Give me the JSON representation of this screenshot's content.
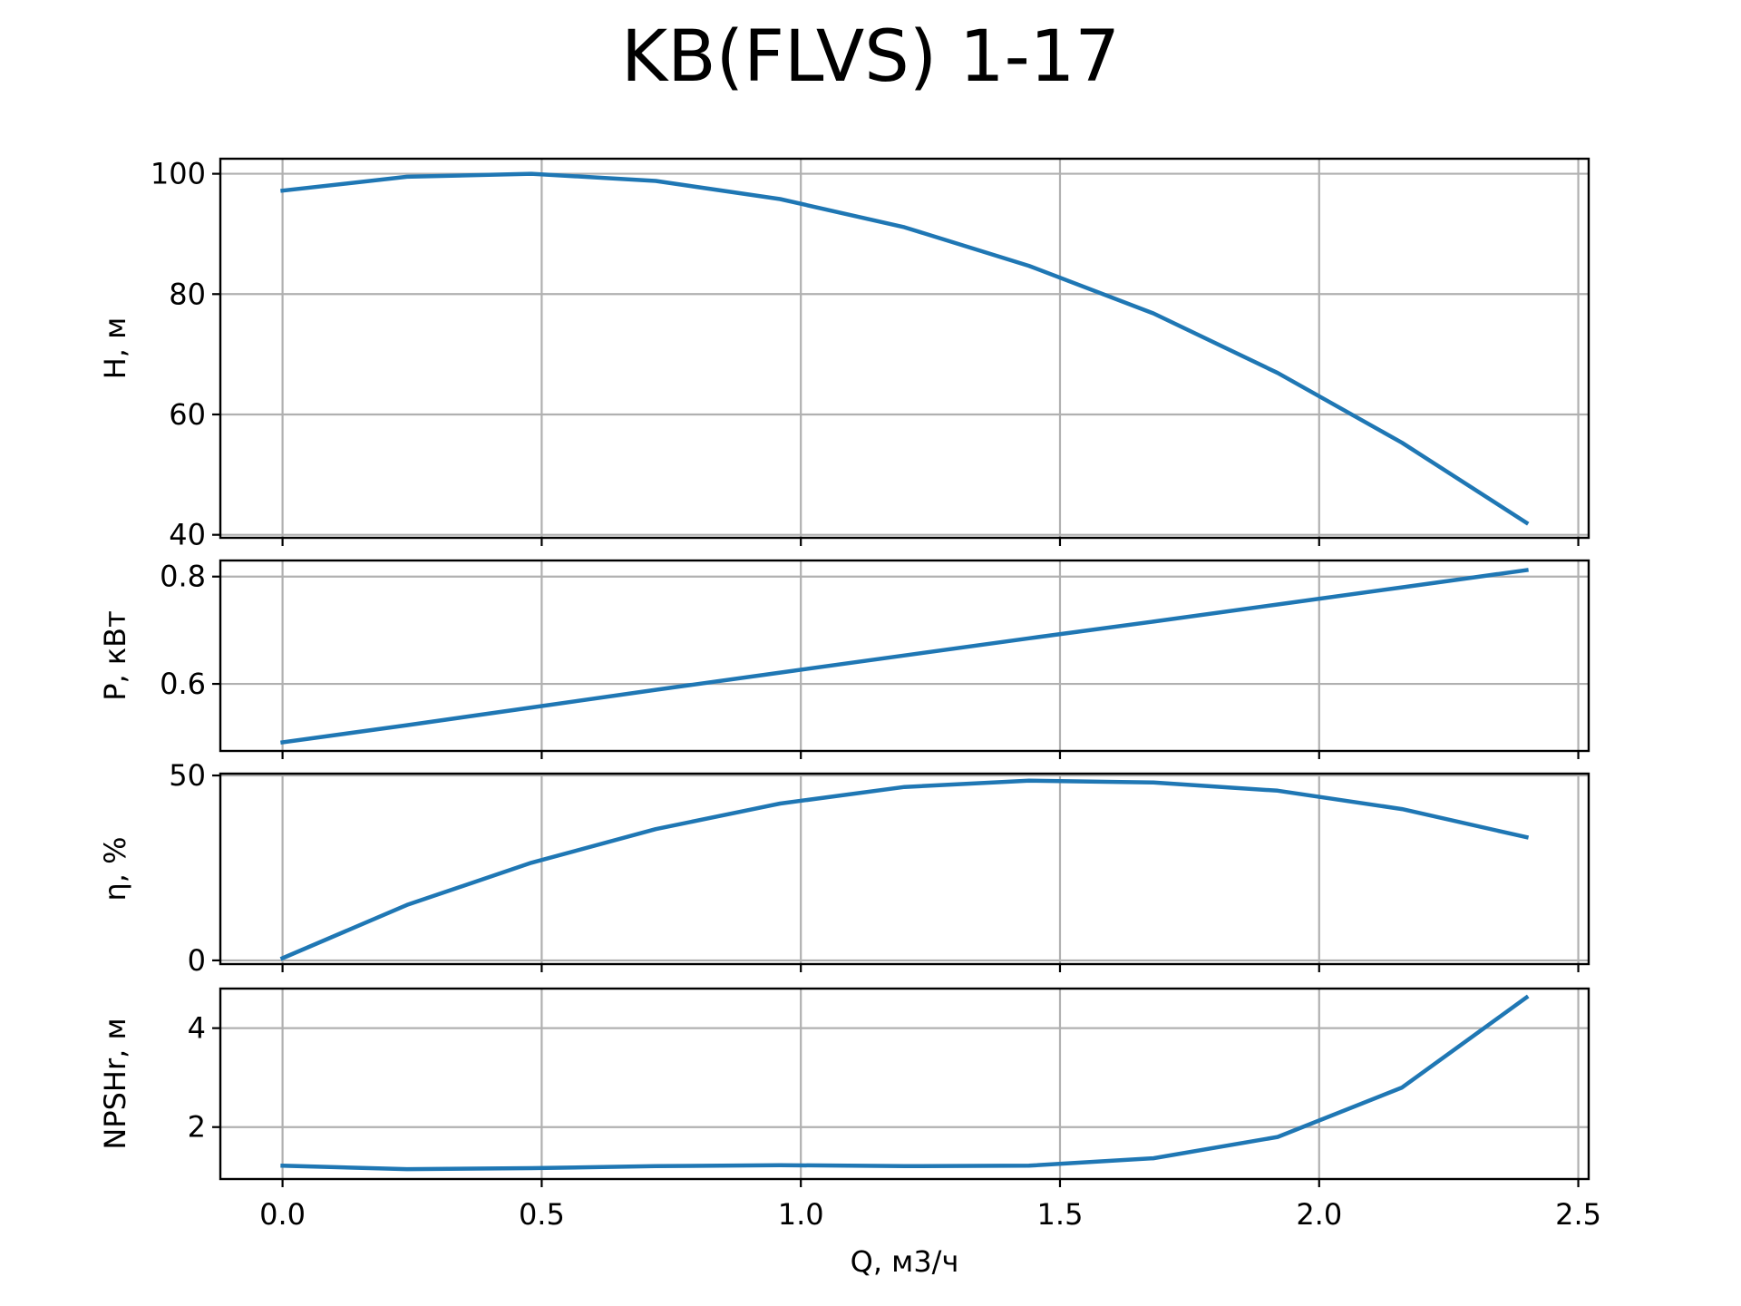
{
  "chart_data": {
    "type": "line",
    "title": "KB(FLVS) 1-17",
    "xlabel": "Q, м3/ч",
    "xlim": [
      -0.12,
      2.52
    ],
    "x_ticks": [
      "0.0",
      "0.5",
      "1.0",
      "1.5",
      "2.0",
      "2.5"
    ],
    "grid": true,
    "line_color": "#1f77b4",
    "subplots": [
      {
        "ylabel": "H, м",
        "ylim": [
          39.5,
          102.5
        ],
        "y_ticks": [
          "40",
          "60",
          "80",
          "100"
        ],
        "series": [
          {
            "x": [
              0.0,
              0.24,
              0.48,
              0.72,
              0.96,
              1.2,
              1.44,
              1.68,
              1.92,
              2.16,
              2.4
            ],
            "y": [
              97.2,
              99.5,
              100.0,
              98.8,
              95.8,
              91.1,
              84.7,
              76.8,
              66.9,
              55.3,
              42.0
            ]
          }
        ]
      },
      {
        "ylabel": "P, кВт",
        "ylim": [
          0.475,
          0.83
        ],
        "y_ticks": [
          "0.6",
          "0.8"
        ],
        "series": [
          {
            "x": [
              0.0,
              0.24,
              0.48,
              0.72,
              0.96,
              1.2,
              1.44,
              1.68,
              1.92,
              2.16,
              2.4
            ],
            "y": [
              0.491,
              0.523,
              0.556,
              0.589,
              0.621,
              0.653,
              0.685,
              0.716,
              0.748,
              0.78,
              0.812
            ]
          }
        ]
      },
      {
        "ylabel": "η, %",
        "ylim": [
          -1,
          50.5
        ],
        "y_ticks": [
          "0",
          "50"
        ],
        "series": [
          {
            "x": [
              0.0,
              0.24,
              0.48,
              0.72,
              0.96,
              1.2,
              1.44,
              1.68,
              1.92,
              2.16,
              2.4
            ],
            "y": [
              0.6,
              15.0,
              26.4,
              35.5,
              42.4,
              46.9,
              48.6,
              48.1,
              45.9,
              40.9,
              33.3
            ]
          }
        ]
      },
      {
        "ylabel": "NPSHr, м",
        "ylim": [
          0.95,
          4.8
        ],
        "y_ticks": [
          "2",
          "4"
        ],
        "series": [
          {
            "x": [
              0.0,
              0.24,
              0.48,
              0.72,
              0.96,
              1.2,
              1.44,
              1.68,
              1.92,
              2.16,
              2.4
            ],
            "y": [
              1.22,
              1.15,
              1.17,
              1.21,
              1.23,
              1.21,
              1.22,
              1.37,
              1.8,
              2.8,
              4.62
            ]
          }
        ]
      }
    ]
  }
}
